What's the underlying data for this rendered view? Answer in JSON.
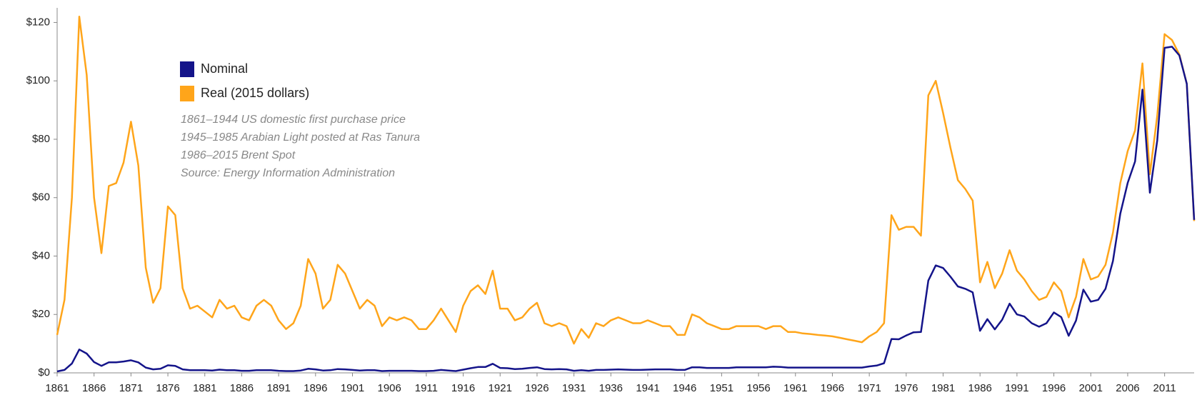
{
  "chart_data": {
    "type": "line",
    "annotations": [
      "1861–1944 US domestic first purchase price",
      "1945–1985 Arabian Light posted at Ras Tanura",
      "1986–2015 Brent Spot",
      "Source: Energy Information Administration"
    ],
    "x": [
      1861,
      1862,
      1863,
      1864,
      1865,
      1866,
      1867,
      1868,
      1869,
      1870,
      1871,
      1872,
      1873,
      1874,
      1875,
      1876,
      1877,
      1878,
      1879,
      1880,
      1881,
      1882,
      1883,
      1884,
      1885,
      1886,
      1887,
      1888,
      1889,
      1890,
      1891,
      1892,
      1893,
      1894,
      1895,
      1896,
      1897,
      1898,
      1899,
      1900,
      1901,
      1902,
      1903,
      1904,
      1905,
      1906,
      1907,
      1908,
      1909,
      1910,
      1911,
      1912,
      1913,
      1914,
      1915,
      1916,
      1917,
      1918,
      1919,
      1920,
      1921,
      1922,
      1923,
      1924,
      1925,
      1926,
      1927,
      1928,
      1929,
      1930,
      1931,
      1932,
      1933,
      1934,
      1935,
      1936,
      1937,
      1938,
      1939,
      1940,
      1941,
      1942,
      1943,
      1944,
      1945,
      1946,
      1947,
      1948,
      1949,
      1950,
      1951,
      1952,
      1953,
      1954,
      1955,
      1956,
      1957,
      1958,
      1959,
      1960,
      1961,
      1962,
      1963,
      1964,
      1965,
      1966,
      1967,
      1968,
      1969,
      1970,
      1971,
      1972,
      1973,
      1974,
      1975,
      1976,
      1977,
      1978,
      1979,
      1980,
      1981,
      1982,
      1983,
      1984,
      1985,
      1986,
      1987,
      1988,
      1989,
      1990,
      1991,
      1992,
      1993,
      1994,
      1995,
      1996,
      1997,
      1998,
      1999,
      2000,
      2001,
      2002,
      2003,
      2004,
      2005,
      2006,
      2007,
      2008,
      2009,
      2010,
      2011,
      2012,
      2013,
      2014,
      2015
    ],
    "series": [
      {
        "name": "Nominal",
        "color": "#14148a",
        "values": [
          0.5,
          1,
          3.2,
          8,
          6.6,
          3.7,
          2.4,
          3.6,
          3.6,
          3.9,
          4.3,
          3.6,
          1.8,
          1.2,
          1.4,
          2.6,
          2.4,
          1.2,
          0.9,
          0.9,
          0.9,
          0.8,
          1.1,
          0.9,
          0.9,
          0.7,
          0.7,
          0.9,
          0.9,
          0.9,
          0.7,
          0.6,
          0.6,
          0.8,
          1.4,
          1.2,
          0.8,
          0.9,
          1.3,
          1.2,
          1,
          0.8,
          0.9,
          0.9,
          0.6,
          0.7,
          0.7,
          0.7,
          0.7,
          0.6,
          0.6,
          0.7,
          1,
          0.8,
          0.6,
          1.1,
          1.6,
          2,
          2,
          3.1,
          1.7,
          1.6,
          1.3,
          1.4,
          1.7,
          1.9,
          1.3,
          1.2,
          1.3,
          1.2,
          0.7,
          0.9,
          0.7,
          1,
          1,
          1.1,
          1.2,
          1.1,
          1,
          1,
          1.1,
          1.2,
          1.2,
          1.2,
          1,
          1,
          1.9,
          1.9,
          1.7,
          1.7,
          1.7,
          1.7,
          1.9,
          1.9,
          1.9,
          1.9,
          1.9,
          2.1,
          2,
          1.8,
          1.8,
          1.8,
          1.8,
          1.8,
          1.8,
          1.8,
          1.8,
          1.8,
          1.8,
          1.8,
          2.2,
          2.5,
          3.3,
          11.6,
          11.5,
          12.8,
          13.9,
          14,
          31.6,
          36.8,
          35.9,
          32.9,
          29.6,
          28.8,
          27.6,
          14.4,
          18.4,
          14.9,
          18.2,
          23.7,
          20,
          19.3,
          17,
          15.8,
          17,
          20.7,
          19.1,
          12.7,
          17.9,
          28.5,
          24.4,
          25,
          28.8,
          38.3,
          54.5,
          65.1,
          72.4,
          97,
          61.7,
          79.5,
          111.3,
          111.7,
          108.7,
          99,
          52.4
        ]
      },
      {
        "name": "Real (2015 dollars)",
        "color": "#ffa51a",
        "values": [
          13,
          25,
          60,
          122,
          102,
          60,
          41,
          64,
          65,
          72,
          86,
          71,
          36,
          24,
          29,
          57,
          54,
          29,
          22,
          23,
          21,
          19,
          25,
          22,
          23,
          19,
          18,
          23,
          25,
          23,
          18,
          15,
          17,
          23,
          39,
          34,
          22,
          25,
          37,
          34,
          28,
          22,
          25,
          23,
          16,
          19,
          18,
          19,
          18,
          15,
          15,
          18,
          22,
          18,
          14,
          23,
          28,
          30,
          27,
          35,
          22,
          22,
          18,
          19,
          22,
          24,
          17,
          16,
          17,
          16,
          10,
          15,
          12,
          17,
          16,
          18,
          19,
          18,
          17,
          17,
          18,
          17,
          16,
          16,
          13,
          13,
          20,
          19,
          17,
          16,
          15,
          15,
          16,
          16,
          16,
          16,
          15,
          16,
          16,
          14,
          14,
          13.5,
          13.3,
          13,
          12.8,
          12.5,
          12,
          11.5,
          11,
          10.5,
          12.5,
          14,
          17,
          54,
          49,
          50,
          50,
          47,
          95,
          100,
          89,
          77,
          66,
          63,
          59,
          31,
          38,
          29,
          34,
          42,
          35,
          32,
          28,
          25,
          26,
          31,
          28,
          19,
          26,
          39,
          32,
          33,
          37,
          48,
          65,
          76,
          83,
          106,
          68,
          88,
          116,
          114,
          109,
          99,
          52
        ]
      }
    ],
    "xlim": [
      1861,
      2015
    ],
    "xticks": [
      1861,
      1866,
      1871,
      1876,
      1881,
      1886,
      1891,
      1896,
      1901,
      1906,
      1911,
      1916,
      1921,
      1926,
      1931,
      1936,
      1941,
      1946,
      1951,
      1956,
      1961,
      1966,
      1971,
      1976,
      1981,
      1986,
      1991,
      1996,
      2001,
      2006,
      2011
    ],
    "ylim": [
      0,
      125
    ],
    "yticks": [
      {
        "value": 0,
        "label": "$0"
      },
      {
        "value": 20,
        "label": "$20"
      },
      {
        "value": 40,
        "label": "$40"
      },
      {
        "value": 60,
        "label": "$60"
      },
      {
        "value": 80,
        "label": "$80"
      },
      {
        "value": 100,
        "label": "$100"
      },
      {
        "value": 120,
        "label": "$120"
      }
    ]
  }
}
